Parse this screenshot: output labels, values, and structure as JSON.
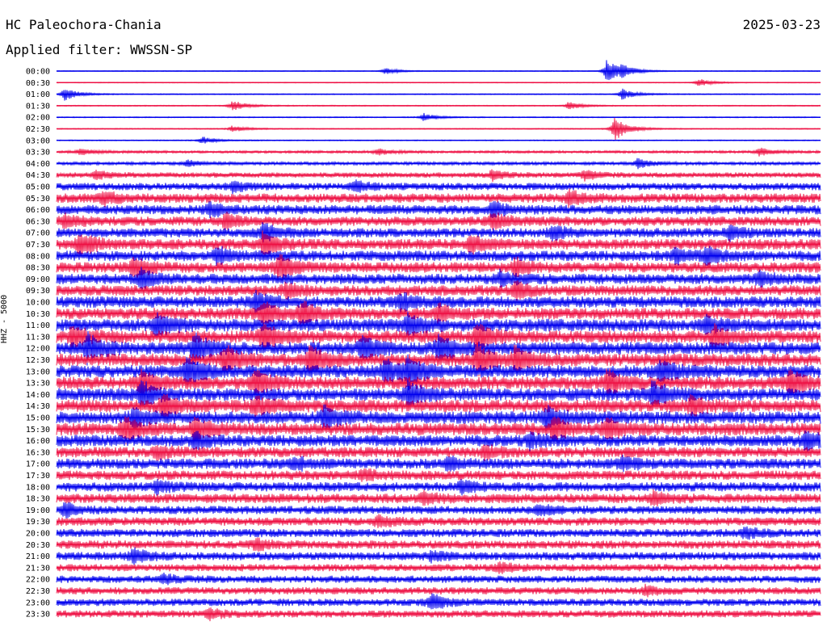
{
  "header": {
    "station": "HC Paleochora-Chania",
    "date": "2025-03-23",
    "filter_label": "Applied filter: WWSSN-SP"
  },
  "chart_data": {
    "type": "line",
    "ylabel": "HHZ - 5000",
    "colors": [
      "#0000ee",
      "#ee1144"
    ],
    "row_times": [
      "00:00",
      "00:30",
      "01:00",
      "01:30",
      "02:00",
      "02:30",
      "03:00",
      "03:30",
      "04:00",
      "04:30",
      "05:00",
      "05:30",
      "06:00",
      "06:30",
      "07:00",
      "07:30",
      "08:00",
      "08:30",
      "09:00",
      "09:30",
      "10:00",
      "10:30",
      "11:00",
      "11:30",
      "12:00",
      "12:30",
      "13:00",
      "13:30",
      "14:00",
      "14:30",
      "15:00",
      "15:30",
      "16:00",
      "16:30",
      "17:00",
      "17:30",
      "18:00",
      "18:30",
      "19:00",
      "19:30",
      "20:00",
      "20:30",
      "21:00",
      "21:30",
      "22:00",
      "22:30",
      "23:00",
      "23:30"
    ],
    "noise_level": [
      0.4,
      0.4,
      0.5,
      0.5,
      0.5,
      0.5,
      0.5,
      1.2,
      1.5,
      2.5,
      3.5,
      4.5,
      4.5,
      4.5,
      4.5,
      5,
      5,
      5,
      5,
      5,
      5.5,
      5.5,
      6,
      6,
      6,
      6,
      6,
      6,
      6,
      6,
      6,
      6,
      5.5,
      5,
      5,
      4.5,
      4.5,
      4.5,
      4,
      4,
      4,
      4,
      4,
      3.5,
      3.5,
      3.5,
      3.5,
      3.5
    ],
    "events": [
      [
        {
          "t": 0.72,
          "a": 14
        },
        {
          "t": 0.43,
          "a": 4
        },
        {
          "t": 0.74,
          "a": 6
        }
      ],
      [
        {
          "t": 0.84,
          "a": 5
        }
      ],
      [
        {
          "t": 0.01,
          "a": 8
        },
        {
          "t": 0.74,
          "a": 7
        }
      ],
      [
        {
          "t": 0.23,
          "a": 7
        },
        {
          "t": 0.67,
          "a": 5
        }
      ],
      [
        {
          "t": 0.48,
          "a": 5
        }
      ],
      [
        {
          "t": 0.73,
          "a": 16
        },
        {
          "t": 0.23,
          "a": 4
        }
      ],
      [
        {
          "t": 0.19,
          "a": 5
        }
      ],
      [
        {
          "t": 0.03,
          "a": 4
        },
        {
          "t": 0.42,
          "a": 4
        },
        {
          "t": 0.92,
          "a": 5
        }
      ],
      [
        {
          "t": 0.17,
          "a": 4
        },
        {
          "t": 0.76,
          "a": 6
        }
      ],
      [
        {
          "t": 0.05,
          "a": 5
        },
        {
          "t": 0.57,
          "a": 6
        },
        {
          "t": 0.69,
          "a": 6
        }
      ],
      [
        {
          "t": 0.23,
          "a": 6
        },
        {
          "t": 0.39,
          "a": 6
        }
      ],
      [
        {
          "t": 0.06,
          "a": 7
        },
        {
          "t": 0.67,
          "a": 8
        }
      ],
      [
        {
          "t": 0.2,
          "a": 8
        },
        {
          "t": 0.57,
          "a": 8
        }
      ],
      [
        {
          "t": 0.01,
          "a": 8
        },
        {
          "t": 0.22,
          "a": 8
        },
        {
          "t": 0.57,
          "a": 9
        }
      ],
      [
        {
          "t": 0.27,
          "a": 10
        },
        {
          "t": 0.65,
          "a": 8
        },
        {
          "t": 0.88,
          "a": 7
        }
      ],
      [
        {
          "t": 0.03,
          "a": 14
        },
        {
          "t": 0.27,
          "a": 14
        },
        {
          "t": 0.54,
          "a": 10
        }
      ],
      [
        {
          "t": 0.21,
          "a": 9
        },
        {
          "t": 0.81,
          "a": 8
        },
        {
          "t": 0.85,
          "a": 9
        }
      ],
      [
        {
          "t": 0.1,
          "a": 12
        },
        {
          "t": 0.29,
          "a": 16
        },
        {
          "t": 0.6,
          "a": 9
        }
      ],
      [
        {
          "t": 0.11,
          "a": 12
        },
        {
          "t": 0.58,
          "a": 8
        },
        {
          "t": 0.92,
          "a": 8
        }
      ],
      [
        {
          "t": 0.3,
          "a": 8
        },
        {
          "t": 0.6,
          "a": 10
        }
      ],
      [
        {
          "t": 0.26,
          "a": 10
        },
        {
          "t": 0.45,
          "a": 10
        }
      ],
      [
        {
          "t": 0.27,
          "a": 14
        },
        {
          "t": 0.32,
          "a": 14
        },
        {
          "t": 0.5,
          "a": 9
        }
      ],
      [
        {
          "t": 0.13,
          "a": 14
        },
        {
          "t": 0.46,
          "a": 12
        },
        {
          "t": 0.85,
          "a": 9
        }
      ],
      [
        {
          "t": 0.02,
          "a": 10
        },
        {
          "t": 0.27,
          "a": 16
        },
        {
          "t": 0.55,
          "a": 16
        },
        {
          "t": 0.86,
          "a": 12
        }
      ],
      [
        {
          "t": 0.04,
          "a": 16
        },
        {
          "t": 0.18,
          "a": 18
        },
        {
          "t": 0.4,
          "a": 14
        },
        {
          "t": 0.5,
          "a": 18
        }
      ],
      [
        {
          "t": 0.22,
          "a": 16
        },
        {
          "t": 0.33,
          "a": 16
        },
        {
          "t": 0.55,
          "a": 18
        },
        {
          "t": 0.6,
          "a": 14
        }
      ],
      [
        {
          "t": 0.17,
          "a": 18
        },
        {
          "t": 0.43,
          "a": 14
        },
        {
          "t": 0.46,
          "a": 18
        },
        {
          "t": 0.79,
          "a": 14
        }
      ],
      [
        {
          "t": 0.11,
          "a": 14
        },
        {
          "t": 0.26,
          "a": 14
        },
        {
          "t": 0.72,
          "a": 14
        },
        {
          "t": 0.96,
          "a": 14
        }
      ],
      [
        {
          "t": 0.11,
          "a": 14
        },
        {
          "t": 0.46,
          "a": 14
        },
        {
          "t": 0.78,
          "a": 16
        }
      ],
      [
        {
          "t": 0.14,
          "a": 14
        },
        {
          "t": 0.26,
          "a": 10
        },
        {
          "t": 0.83,
          "a": 10
        }
      ],
      [
        {
          "t": 0.1,
          "a": 10
        },
        {
          "t": 0.35,
          "a": 14
        },
        {
          "t": 0.64,
          "a": 12
        }
      ],
      [
        {
          "t": 0.09,
          "a": 14
        },
        {
          "t": 0.18,
          "a": 14
        },
        {
          "t": 0.65,
          "a": 14
        },
        {
          "t": 0.72,
          "a": 12
        }
      ],
      [
        {
          "t": 0.18,
          "a": 9
        },
        {
          "t": 0.62,
          "a": 8
        },
        {
          "t": 0.98,
          "a": 10
        }
      ],
      [
        {
          "t": 0.13,
          "a": 7
        },
        {
          "t": 0.56,
          "a": 7
        }
      ],
      [
        {
          "t": 0.31,
          "a": 7
        },
        {
          "t": 0.51,
          "a": 7
        },
        {
          "t": 0.74,
          "a": 7
        }
      ],
      [
        {
          "t": 0.4,
          "a": 6
        }
      ],
      [
        {
          "t": 0.13,
          "a": 6
        },
        {
          "t": 0.53,
          "a": 7
        }
      ],
      [
        {
          "t": 0.48,
          "a": 7
        },
        {
          "t": 0.78,
          "a": 7
        }
      ],
      [
        {
          "t": 0.01,
          "a": 7
        },
        {
          "t": 0.63,
          "a": 6
        }
      ],
      [
        {
          "t": 0.42,
          "a": 6
        }
      ],
      [
        {
          "t": 0.9,
          "a": 6
        }
      ],
      [
        {
          "t": 0.26,
          "a": 6
        }
      ],
      [
        {
          "t": 0.1,
          "a": 8
        },
        {
          "t": 0.49,
          "a": 5
        }
      ],
      [
        {
          "t": 0.58,
          "a": 6
        }
      ],
      [
        {
          "t": 0.14,
          "a": 5
        }
      ],
      [
        {
          "t": 0.77,
          "a": 5
        }
      ],
      [
        {
          "t": 0.49,
          "a": 10
        }
      ],
      [
        {
          "t": 0.2,
          "a": 5
        }
      ]
    ]
  }
}
